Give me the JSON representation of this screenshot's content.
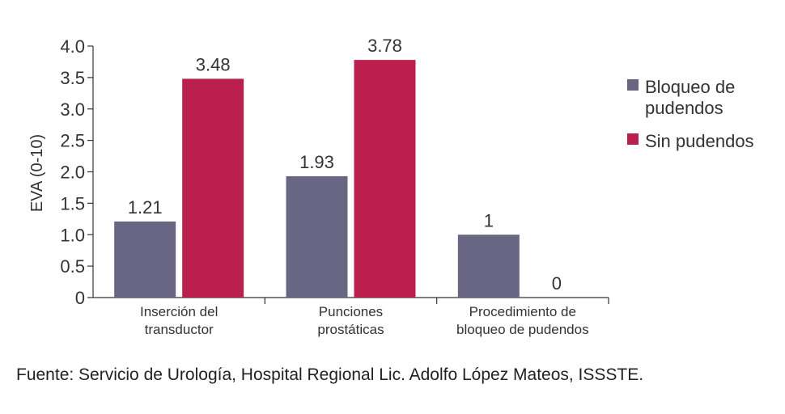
{
  "chart_data": {
    "type": "bar",
    "ylabel": "EVA (0-10)",
    "ylim": [
      0,
      4.0
    ],
    "yticks": [
      "0",
      "0.5",
      "1.0",
      "1.5",
      "2.0",
      "2.5",
      "3.0",
      "3.5",
      "4.0"
    ],
    "categories": [
      [
        "Inserción del",
        "transductor"
      ],
      [
        "Punciones",
        "prostáticas"
      ],
      [
        "Procedimiento de",
        "bloqueo de pudendos"
      ]
    ],
    "series": [
      {
        "name": "Bloqueo de pudendos",
        "legend_lines": [
          "Bloqueo de",
          "pudendos"
        ],
        "color": "#696683",
        "values": [
          1.21,
          1.93,
          1
        ],
        "labels": [
          "1.21",
          "1.93",
          "1"
        ]
      },
      {
        "name": "Sin pudendos",
        "legend_lines": [
          "Sin pudendos"
        ],
        "color": "#bb1f4d",
        "values": [
          3.48,
          3.78,
          0
        ],
        "labels": [
          "3.48",
          "3.78",
          "0"
        ]
      }
    ],
    "legend_position": "right",
    "grid": false
  },
  "source": "Fuente: Servicio de Urología, Hospital Regional Lic. Adolfo López Mateos, ISSSTE."
}
